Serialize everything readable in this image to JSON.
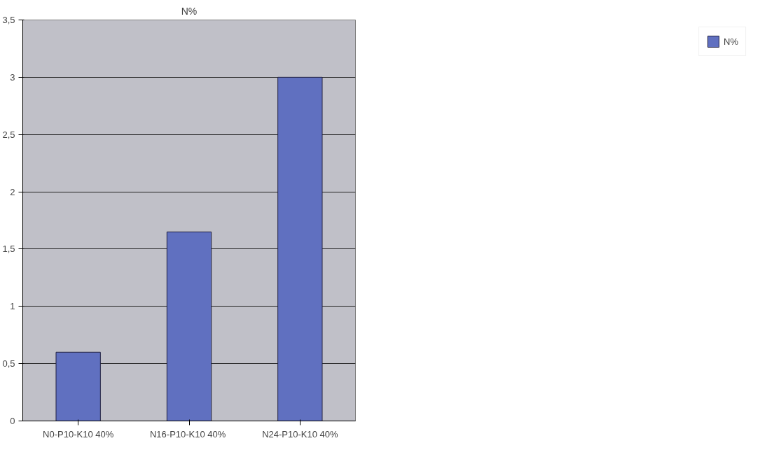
{
  "chart_data": {
    "type": "bar",
    "title": "N%",
    "categories": [
      "N0-P10-K10 40%",
      "N16-P10-K10  40%",
      "N24-P10-K10 40%"
    ],
    "series": [
      {
        "name": "N%",
        "color": "#6070c0",
        "values": [
          0.6,
          1.65,
          3.0
        ]
      }
    ],
    "ylim": [
      0,
      3.5
    ],
    "yticks": [
      0,
      {
        "value": 0.5,
        "label": "0,5"
      },
      1,
      {
        "value": 1.5,
        "label": "1,5"
      },
      2,
      {
        "value": 2.5,
        "label": "2,5"
      },
      3,
      {
        "value": 3.5,
        "label": "3,5"
      }
    ],
    "grid": "y",
    "legend": "right"
  }
}
